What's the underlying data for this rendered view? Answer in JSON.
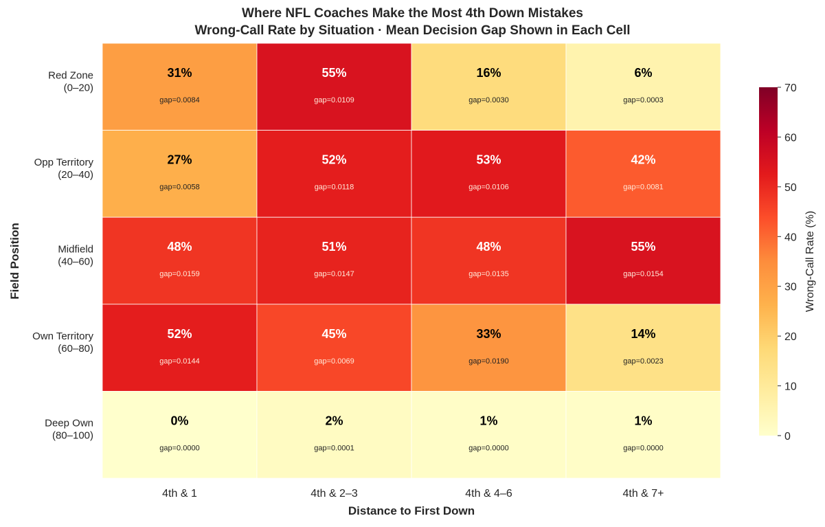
{
  "chart_data": {
    "type": "heatmap",
    "title": "Where NFL Coaches Make the Most 4th Down Mistakes",
    "subtitle": "Wrong-Call Rate by Situation  ·  Mean Decision Gap Shown in Each Cell",
    "xlabel": "Distance to First Down",
    "ylabel": "Field Position",
    "x_categories": [
      "4th & 1",
      "4th & 2–3",
      "4th & 4–6",
      "4th & 7+"
    ],
    "y_categories": [
      [
        "Red Zone",
        "(0–20)"
      ],
      [
        "Opp Territory",
        "(20–40)"
      ],
      [
        "Midfield",
        "(40–60)"
      ],
      [
        "Own Territory",
        "(60–80)"
      ],
      [
        "Deep Own",
        "(80–100)"
      ]
    ],
    "values": [
      [
        31,
        55,
        16,
        6
      ],
      [
        27,
        52,
        53,
        42
      ],
      [
        48,
        51,
        48,
        55
      ],
      [
        52,
        45,
        33,
        14
      ],
      [
        0,
        2,
        1,
        1
      ]
    ],
    "gaps": [
      [
        "gap=0.0084",
        "gap=0.0109",
        "gap=0.0030",
        "gap=0.0003"
      ],
      [
        "gap=0.0058",
        "gap=0.0118",
        "gap=0.0106",
        "gap=0.0081"
      ],
      [
        "gap=0.0159",
        "gap=0.0147",
        "gap=0.0135",
        "gap=0.0154"
      ],
      [
        "gap=0.0144",
        "gap=0.0069",
        "gap=0.0190",
        "gap=0.0023"
      ],
      [
        "gap=0.0000",
        "gap=0.0001",
        "gap=0.0000",
        "gap=0.0000"
      ]
    ],
    "value_suffix": "%",
    "colorbar": {
      "label": "Wrong-Call Rate (%)",
      "range": [
        0,
        70
      ],
      "ticks": [
        0,
        10,
        20,
        30,
        40,
        50,
        60,
        70
      ],
      "colormap": "YlOrRd",
      "colors": [
        "#ffffcc",
        "#ffeda0",
        "#fed976",
        "#feb24c",
        "#fd8d3c",
        "#fc4e2a",
        "#e31a1c",
        "#bd0026",
        "#800026"
      ]
    }
  }
}
